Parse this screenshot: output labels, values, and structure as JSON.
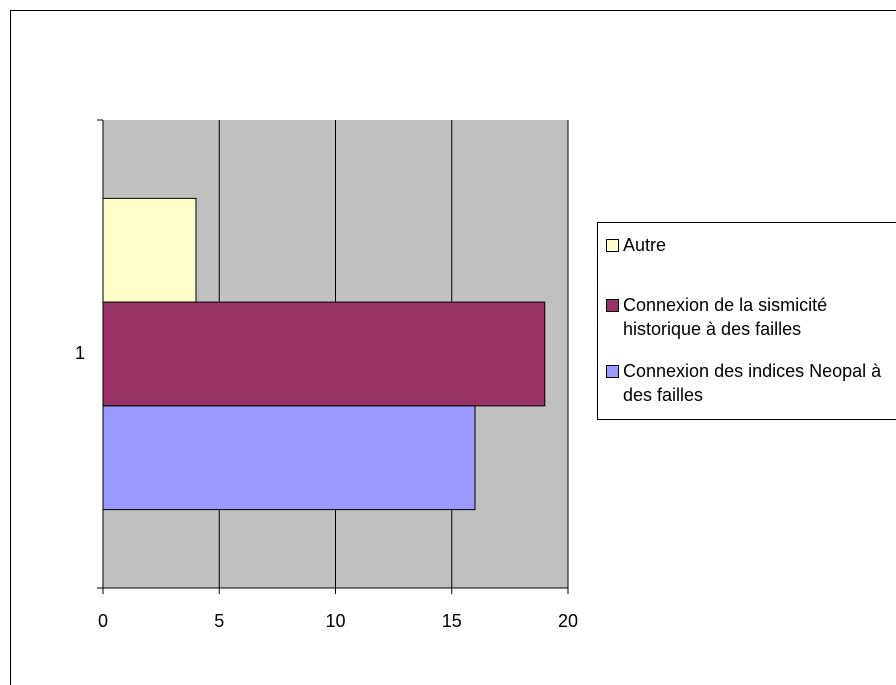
{
  "chart_data": {
    "type": "barh",
    "categories": [
      "1"
    ],
    "series": [
      {
        "name": "Autre",
        "color": "#ffffcc",
        "values": [
          4
        ]
      },
      {
        "name": "Connexion de la sismicité historique à des failles",
        "color": "#993366",
        "values": [
          19
        ]
      },
      {
        "name": "Connexion des indices Neopal à des failles",
        "color": "#9999ff",
        "values": [
          16
        ]
      }
    ],
    "xlim": [
      0,
      20
    ],
    "xticks": [
      0,
      5,
      10,
      15,
      20
    ],
    "grid": true,
    "legend": "right"
  }
}
